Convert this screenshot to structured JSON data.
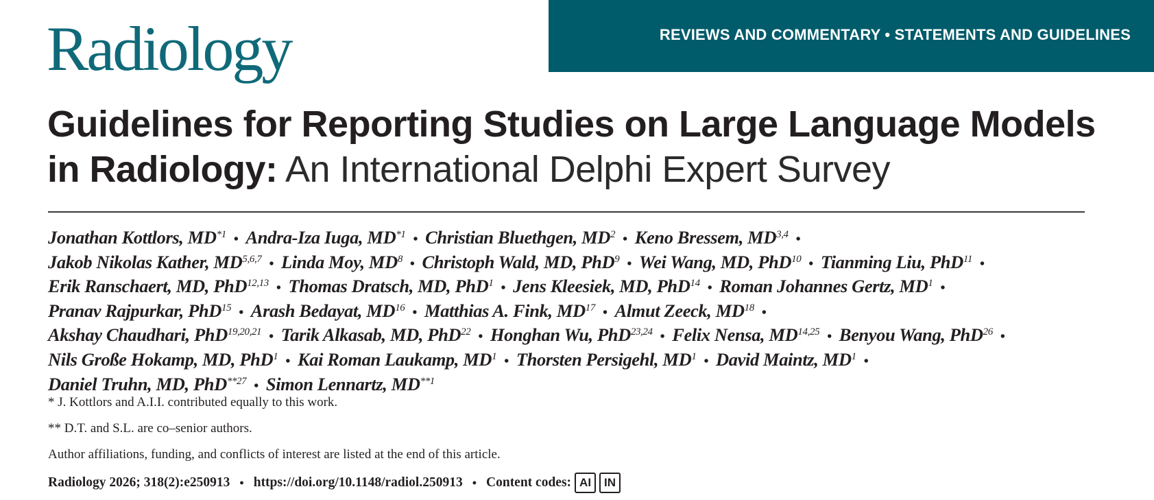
{
  "journal": {
    "logo_text": "Radiology",
    "section_banner": "REVIEWS AND COMMENTARY • STATEMENTS AND GUIDELINES",
    "brand_color": "#005b6a"
  },
  "article": {
    "title_bold_line1": "Guidelines for Reporting Studies on Large Language Models",
    "title_bold_line2": "in Radiology:",
    "title_subtitle": " An International Delphi Expert Survey"
  },
  "authors": [
    [
      {
        "name": "Jonathan Kottlors, MD",
        "sup": "*1"
      },
      {
        "name": "Andra-Iza Iuga, MD",
        "sup": "*1"
      },
      {
        "name": "Christian Bluethgen, MD",
        "sup": "2"
      },
      {
        "name": "Keno Bressem, MD",
        "sup": "3,4"
      }
    ],
    [
      {
        "name": "Jakob Nikolas Kather, MD",
        "sup": "5,6,7"
      },
      {
        "name": "Linda Moy, MD",
        "sup": "8"
      },
      {
        "name": "Christoph Wald, MD, PhD",
        "sup": "9"
      },
      {
        "name": "Wei Wang, MD, PhD",
        "sup": "10"
      },
      {
        "name": "Tianming Liu, PhD",
        "sup": "11"
      }
    ],
    [
      {
        "name": "Erik Ranschaert, MD, PhD",
        "sup": "12,13"
      },
      {
        "name": "Thomas Dratsch, MD, PhD",
        "sup": "1"
      },
      {
        "name": "Jens Kleesiek, MD, PhD",
        "sup": "14"
      },
      {
        "name": "Roman Johannes Gertz, MD",
        "sup": "1"
      }
    ],
    [
      {
        "name": "Pranav Rajpurkar, PhD",
        "sup": "15"
      },
      {
        "name": "Arash Bedayat, MD",
        "sup": "16"
      },
      {
        "name": "Matthias A. Fink, MD",
        "sup": "17"
      },
      {
        "name": "Almut Zeeck, MD",
        "sup": "18"
      }
    ],
    [
      {
        "name": "Akshay Chaudhari, PhD",
        "sup": "19,20,21"
      },
      {
        "name": "Tarik Alkasab, MD, PhD",
        "sup": "22"
      },
      {
        "name": "Honghan Wu, PhD",
        "sup": "23,24"
      },
      {
        "name": "Felix Nensa, MD",
        "sup": "14,25"
      },
      {
        "name": "Benyou Wang, PhD",
        "sup": "26"
      }
    ],
    [
      {
        "name": "Nils Große Hokamp, MD, PhD",
        "sup": "1"
      },
      {
        "name": "Kai Roman Laukamp, MD",
        "sup": "1"
      },
      {
        "name": "Thorsten Persigehl, MD",
        "sup": "1"
      },
      {
        "name": "David Maintz, MD",
        "sup": "1"
      }
    ],
    [
      {
        "name": "Daniel Truhn, MD, PhD",
        "sup": "**27"
      },
      {
        "name": "Simon Lennartz, MD",
        "sup": "**1"
      }
    ]
  ],
  "separator": "•",
  "notes": {
    "equal_contribution": "* J. Kottlors and A.I.I. contributed equally to this work.",
    "co_senior": "** D.T. and S.L. are co–senior authors.",
    "affiliations": "Author affiliations, funding, and conflicts of interest are listed at the end of this article."
  },
  "citation": {
    "journal_ref": "Radiology 2026; 318(2):e250913",
    "doi": "https://doi.org/10.1148/radiol.250913",
    "content_codes_label": "Content codes:",
    "content_codes": [
      "AI",
      "IN"
    ]
  }
}
